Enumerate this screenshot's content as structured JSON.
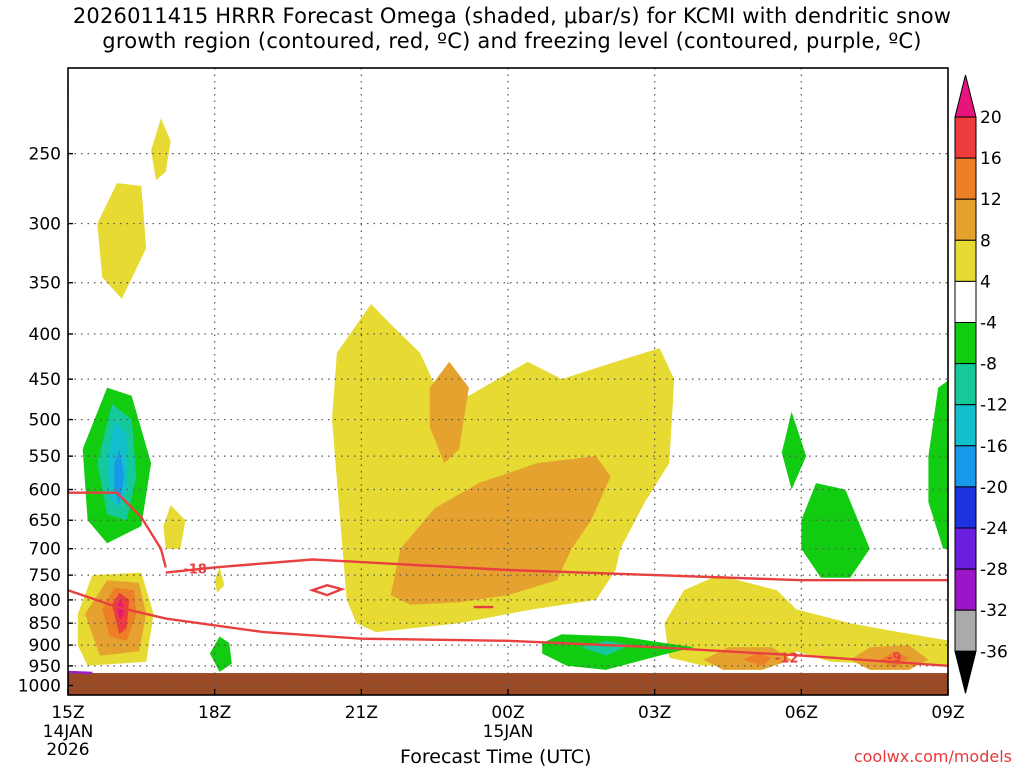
{
  "chart_data": {
    "type": "heatmap",
    "title_line1": "2026011415 HRRR Forecast Omega (shaded, μbar/s) for KCMI with dendritic snow",
    "title_line2": "growth region (contoured, red, ºC) and freezing level (contoured, purple, ºC)",
    "xlabel": "Forecast Time (UTC)",
    "ylabel": "",
    "x_ticks": [
      {
        "label": "15Z",
        "sub": [
          "14JAN",
          "2026"
        ],
        "hour": 0
      },
      {
        "label": "18Z",
        "sub": [],
        "hour": 3
      },
      {
        "label": "21Z",
        "sub": [],
        "hour": 6
      },
      {
        "label": "00Z",
        "sub": [
          "15JAN"
        ],
        "hour": 9
      },
      {
        "label": "03Z",
        "sub": [],
        "hour": 12
      },
      {
        "label": "06Z",
        "sub": [],
        "hour": 15
      },
      {
        "label": "09Z",
        "sub": [],
        "hour": 18
      }
    ],
    "x_range_hours": [
      0,
      18
    ],
    "y_ticks": [
      "250",
      "300",
      "350",
      "400",
      "450",
      "500",
      "550",
      "600",
      "650",
      "700",
      "750",
      "800",
      "850",
      "900",
      "950",
      "1000"
    ],
    "y_range_hpa": [
      200,
      1025
    ],
    "colorbar_labels": [
      "20",
      "16",
      "12",
      "8",
      "4",
      "-4",
      "-8",
      "-12",
      "-16",
      "-20",
      "-24",
      "-28",
      "-32",
      "-36"
    ],
    "contour_labels": [
      "-18",
      "-12",
      "-9"
    ],
    "contours": [
      {
        "name": "dendritic upper (-18C)",
        "color": "#e84040",
        "points": [
          [
            0,
            605
          ],
          [
            1.0,
            605
          ],
          [
            1.5,
            645
          ],
          [
            1.9,
            700
          ],
          [
            2.0,
            735
          ]
        ]
      },
      {
        "name": "dendritic upper (-18C) cont",
        "color": "#e84040",
        "points": [
          [
            2.0,
            745
          ],
          [
            3.0,
            735
          ],
          [
            5.0,
            720
          ],
          [
            6.0,
            725
          ],
          [
            9.0,
            740
          ],
          [
            12.0,
            750
          ],
          [
            15.0,
            760
          ],
          [
            18.0,
            760
          ]
        ]
      },
      {
        "name": "dendritic lower (-12C)",
        "color": "#e84040",
        "points": [
          [
            0,
            780
          ],
          [
            1.0,
            815
          ],
          [
            2.0,
            840
          ],
          [
            4.0,
            870
          ],
          [
            6.0,
            885
          ],
          [
            9.0,
            890
          ],
          [
            12.0,
            905
          ],
          [
            15.0,
            925
          ],
          [
            18.0,
            950
          ]
        ]
      },
      {
        "name": "freezing level",
        "color": "#9b1fc9",
        "points": [
          [
            0,
            965
          ],
          [
            0.5,
            968
          ]
        ]
      }
    ]
  },
  "credit": "coolwx.com/models",
  "colors": {
    "yellow": "#e6da33",
    "orange": "#e6a22e",
    "dark_orange": "#ec7f28",
    "red": "#ec3c3c",
    "magenta": "#e5157d",
    "green": "#11cc11",
    "teal": "#15c99a",
    "cyan": "#12c0cd",
    "sky": "#1798e8",
    "blue": "#1d33e0",
    "ground": "#9b4a26",
    "contour_red": "#e84040",
    "contour_purple": "#9b1fc9"
  }
}
